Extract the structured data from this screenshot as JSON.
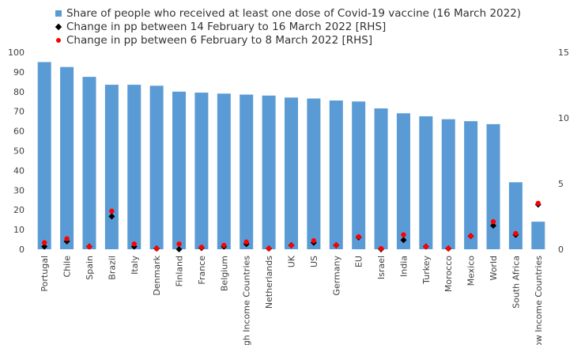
{
  "chart_data": {
    "type": "bar",
    "categories": [
      "Portugal",
      "Chile",
      "Spain",
      "Brazil",
      "Italy",
      "Denmark",
      "Finland",
      "France",
      "Belgium",
      "High Income Countries",
      "Netherlands",
      "UK",
      "US",
      "Germany",
      "EU",
      "Israel",
      "India",
      "Turkey",
      "Morocco",
      "Mexico",
      "World",
      "South Africa",
      "Low Income Countries"
    ],
    "series": [
      {
        "name": "Share of people who received at least one dose of Covid-19 vaccine (16 March 2022)",
        "axis": "left",
        "kind": "bar",
        "color": "#5b9bd5",
        "values": [
          95,
          92.5,
          87.5,
          83.5,
          83.5,
          83,
          80,
          79.5,
          79,
          78.5,
          78,
          77,
          76.5,
          75.5,
          75,
          71.5,
          69,
          67.5,
          66,
          65,
          63.5,
          34,
          14
        ]
      },
      {
        "name": "Change in pp between 14 February to 16 March 2022 [RHS]",
        "axis": "right",
        "kind": "diamond",
        "color": "#000000",
        "values": [
          0.2,
          0.6,
          0.2,
          2.5,
          0.2,
          0.05,
          0.0,
          0.1,
          0.2,
          0.4,
          0.05,
          0.3,
          0.5,
          0.3,
          0.9,
          0.0,
          0.7,
          0.2,
          0.05,
          1.0,
          1.8,
          1.1,
          3.4
        ]
      },
      {
        "name": "Change in pp between 6 February to 8 March 2022 [RHS]",
        "axis": "right",
        "kind": "dot",
        "color": "#ff0000",
        "values": [
          0.5,
          0.8,
          0.2,
          2.9,
          0.4,
          0.05,
          0.4,
          0.15,
          0.3,
          0.55,
          0.05,
          0.3,
          0.65,
          0.3,
          0.95,
          0.05,
          1.1,
          0.2,
          0.05,
          1.0,
          2.1,
          1.2,
          3.5
        ]
      }
    ],
    "y_left": {
      "min": 0,
      "max": 100,
      "ticks": [
        0,
        10,
        20,
        30,
        40,
        50,
        60,
        70,
        80,
        90,
        100
      ]
    },
    "y_right": {
      "min": 0,
      "max": 15,
      "ticks": [
        0,
        5,
        10,
        15
      ]
    },
    "legend_position": "top-left",
    "grid": false
  }
}
